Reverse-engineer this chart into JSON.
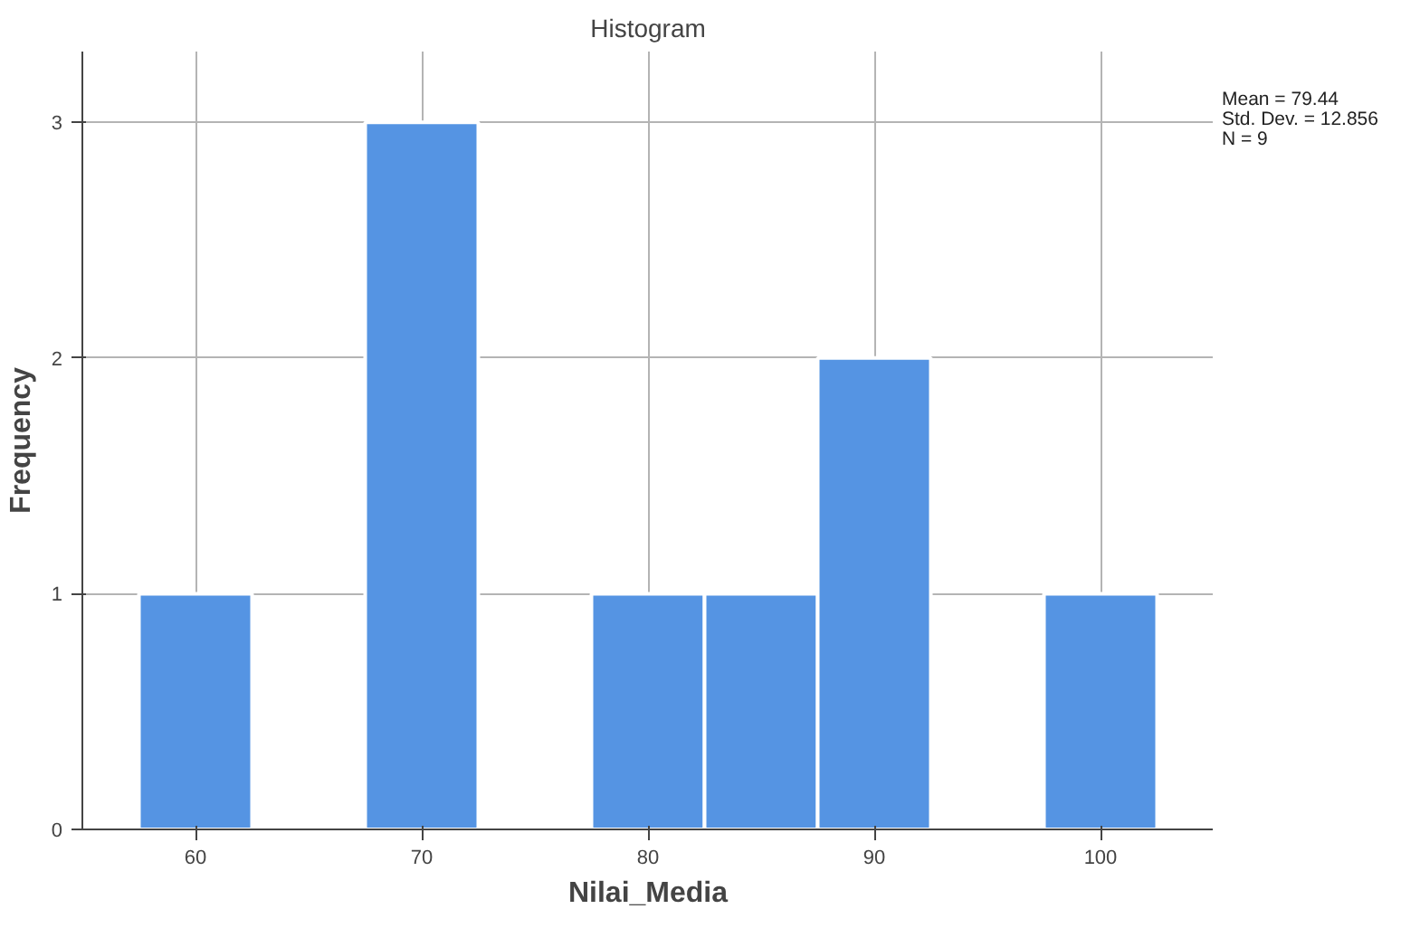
{
  "chart_data": {
    "type": "histogram",
    "title": "Histogram",
    "xlabel": "Nilai_Media",
    "ylabel": "Frequency",
    "bins": [
      57.5,
      62.5,
      67.5,
      72.5,
      77.5,
      82.5,
      87.5,
      92.5,
      97.5,
      102.5
    ],
    "values": [
      1,
      0,
      3,
      0,
      1,
      1,
      2,
      0,
      1
    ],
    "color": "#5594e3",
    "xlim": [
      55,
      105
    ],
    "xticks": [
      60,
      70,
      80,
      90,
      100
    ],
    "ylim": [
      0,
      3.3
    ],
    "yticks": [
      0,
      1,
      2,
      3
    ],
    "grid": true,
    "annotations": [
      "Mean = 79.44",
      "Std. Dev. = 12.856",
      "N = 9"
    ]
  }
}
